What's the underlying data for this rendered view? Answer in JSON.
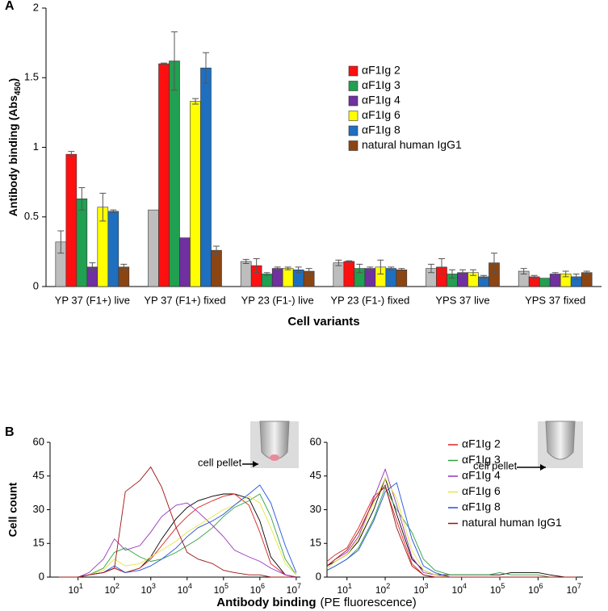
{
  "chart_data": [
    {
      "type": "bar",
      "panel_label": "A",
      "y_label": "Antibody binding (Abs",
      "y_label_sub": "450",
      "y_label_end": ")",
      "x_label": "Cell variants",
      "categories": [
        "YP 37 (F1+) live",
        "YP 37 (F1+) fixed",
        "YP 23 (F1-) live",
        "YP 23 (F1-) fixed",
        "YPS 37 live",
        "YPS 37 fixed"
      ],
      "ylim": [
        0,
        2
      ],
      "yticks": [
        0,
        0.5,
        1,
        1.5,
        2
      ],
      "grid": false,
      "series": [
        {
          "color": "#bdbdbd",
          "values": [
            0.32,
            0.55,
            0.18,
            0.17,
            0.13,
            0.11
          ],
          "errors": [
            0.08,
            null,
            0.015,
            0.02,
            0.03,
            0.02
          ]
        },
        {
          "name": "αF1Ig 2",
          "color": "#ff1010",
          "values": [
            0.95,
            1.6,
            0.15,
            0.18,
            0.14,
            0.07
          ],
          "errors": [
            0.02,
            0.005,
            0.05,
            0.005,
            0.06,
            0.01
          ]
        },
        {
          "name": "αF1Ig 3",
          "color": "#20a050",
          "values": [
            0.63,
            1.62,
            0.09,
            0.13,
            0.09,
            0.06
          ],
          "errors": [
            0.08,
            0.21,
            0.01,
            0.03,
            0.03,
            null
          ]
        },
        {
          "name": "αF1Ig 4",
          "color": "#7030a0",
          "values": [
            0.14,
            0.35,
            0.13,
            0.13,
            0.1,
            0.09
          ],
          "errors": [
            0.03,
            null,
            0.01,
            0.01,
            0.02,
            0.01
          ]
        },
        {
          "name": "αF1Ig 6",
          "color": "#ffff00",
          "values": [
            0.57,
            1.33,
            0.13,
            0.14,
            0.1,
            0.09
          ],
          "errors": [
            0.1,
            0.02,
            0.01,
            0.05,
            0.02,
            0.02
          ]
        },
        {
          "name": "αF1Ig 8",
          "color": "#1f6fc0",
          "values": [
            0.54,
            1.57,
            0.12,
            0.13,
            0.07,
            0.07
          ],
          "errors": [
            0.01,
            0.11,
            0.02,
            0.01,
            0.01,
            0.02
          ]
        },
        {
          "name": "natural human IgG1",
          "color": "#8b4513",
          "values": [
            0.14,
            0.26,
            0.11,
            0.12,
            0.17,
            0.1
          ],
          "errors": [
            0.02,
            0.03,
            0.02,
            0.01,
            0.07,
            0.01
          ]
        }
      ]
    },
    {
      "type": "line",
      "panel_label": "B",
      "log_x": true,
      "y_label": "Cell count",
      "x_label": "Antibody binding",
      "x_label_note": "(PE fluorescence)",
      "annotation": "cell pellet",
      "x": [
        3,
        5,
        10,
        20,
        50,
        100,
        200,
        500,
        1000,
        2000,
        5000,
        10000,
        20000,
        50000,
        100000,
        200000,
        500000,
        1000000,
        2000000,
        5000000,
        10000000
      ],
      "xlim": [
        1.7,
        13000000
      ],
      "xticks": [
        {
          "value": 10,
          "label": "10",
          "exponent": "1"
        },
        {
          "value": 100,
          "label": "10",
          "exponent": "2"
        },
        {
          "value": 1000,
          "label": "10",
          "exponent": "3"
        },
        {
          "value": 10000,
          "label": "10",
          "exponent": "4"
        },
        {
          "value": 100000,
          "label": "10",
          "exponent": "5"
        },
        {
          "value": 1000000,
          "label": "10",
          "exponent": "6"
        },
        {
          "value": 10000000,
          "label": "10",
          "exponent": "7"
        }
      ],
      "ylim": [
        0,
        60
      ],
      "yticks": [
        0,
        15,
        30,
        45,
        60
      ],
      "series": [
        {
          "color": "#000000",
          "values": [
            0,
            0,
            0,
            1,
            2,
            4,
            2,
            4,
            9,
            17,
            26,
            31,
            34,
            36,
            37,
            37,
            35,
            25,
            9,
            1,
            0
          ]
        },
        {
          "color": "#e02020",
          "values": [
            0,
            0,
            0,
            1,
            2,
            4,
            2,
            4,
            8,
            14,
            22,
            27,
            31,
            34,
            36,
            37,
            32,
            20,
            6,
            1,
            0
          ]
        },
        {
          "color": "#30a040",
          "values": [
            0,
            0,
            0,
            1,
            4,
            11,
            13,
            9,
            7,
            8,
            11,
            14,
            17,
            22,
            27,
            31,
            34,
            37,
            27,
            8,
            1
          ]
        },
        {
          "color": "#9933bb",
          "values": [
            0,
            0,
            0,
            2,
            8,
            17,
            12,
            14,
            20,
            27,
            32,
            33,
            29,
            23,
            18,
            12,
            9,
            7,
            4,
            1,
            0
          ]
        },
        {
          "color": "#e6e640",
          "values": [
            0,
            0,
            0,
            1,
            3,
            8,
            5,
            6,
            9,
            12,
            16,
            20,
            23,
            27,
            30,
            32,
            36,
            33,
            22,
            6,
            1
          ]
        },
        {
          "color": "#2050e0",
          "values": [
            0,
            0,
            0,
            1,
            2,
            5,
            2,
            3,
            5,
            8,
            13,
            18,
            22,
            25,
            28,
            32,
            37,
            41,
            33,
            14,
            2
          ]
        },
        {
          "color": "#a01010",
          "values": [
            0,
            0,
            0,
            1,
            2,
            4,
            38,
            43,
            49,
            40,
            22,
            11,
            8,
            6,
            3,
            2,
            1,
            1,
            0,
            0,
            0
          ]
        }
      ]
    },
    {
      "type": "line",
      "log_x": true,
      "annotation": "cell pellet",
      "x": [
        3,
        5,
        10,
        20,
        50,
        100,
        200,
        500,
        1000,
        2000,
        5000,
        10000,
        20000,
        50000,
        100000,
        200000,
        500000,
        1000000,
        2000000,
        5000000,
        10000000
      ],
      "xlim": [
        3,
        15000000
      ],
      "xticks": [
        {
          "value": 10,
          "label": "10",
          "exponent": "1"
        },
        {
          "value": 100,
          "label": "10",
          "exponent": "2"
        },
        {
          "value": 1000,
          "label": "10",
          "exponent": "3"
        },
        {
          "value": 10000,
          "label": "10",
          "exponent": "4"
        },
        {
          "value": 100000,
          "label": "10",
          "exponent": "5"
        },
        {
          "value": 1000000,
          "label": "10",
          "exponent": "6"
        },
        {
          "value": 10000000,
          "label": "10",
          "exponent": "7"
        }
      ],
      "ylim": [
        0,
        60
      ],
      "yticks": [
        0,
        15,
        30,
        45,
        60
      ],
      "series": [
        {
          "color": "#000000",
          "values": [
            5,
            7,
            10,
            16,
            30,
            44,
            28,
            8,
            3,
            1,
            1,
            1,
            1,
            1,
            1,
            2,
            2,
            2,
            1,
            0,
            0
          ]
        },
        {
          "name": "αF1Ig 2",
          "color": "#e02020",
          "values": [
            7,
            10,
            13,
            22,
            36,
            40,
            25,
            6,
            1,
            0,
            0,
            0,
            0,
            0,
            0,
            0,
            0,
            0,
            0,
            0,
            0
          ]
        },
        {
          "name": "αF1Ig 3",
          "color": "#30a040",
          "values": [
            3,
            5,
            8,
            13,
            26,
            40,
            30,
            20,
            8,
            3,
            1,
            1,
            1,
            1,
            2,
            1,
            1,
            1,
            0,
            0,
            0
          ]
        },
        {
          "name": "αF1Ig 4",
          "color": "#9933bb",
          "values": [
            5,
            8,
            11,
            18,
            35,
            48,
            32,
            9,
            2,
            1,
            0,
            0,
            0,
            0,
            0,
            0,
            0,
            0,
            0,
            0,
            0
          ]
        },
        {
          "name": "αF1Ig 6",
          "color": "#e6e640",
          "values": [
            4,
            7,
            10,
            17,
            33,
            44,
            35,
            12,
            3,
            1,
            0,
            0,
            0,
            0,
            0,
            0,
            0,
            0,
            0,
            0,
            0
          ]
        },
        {
          "name": "αF1Ig 8",
          "color": "#2050e0",
          "values": [
            3,
            5,
            8,
            12,
            25,
            38,
            42,
            17,
            5,
            2,
            0,
            0,
            0,
            0,
            0,
            0,
            0,
            0,
            0,
            0,
            0
          ]
        },
        {
          "name": "natural human IgG1",
          "color": "#a01010",
          "values": [
            5,
            8,
            12,
            20,
            34,
            41,
            22,
            5,
            1,
            0,
            0,
            0,
            0,
            0,
            0,
            0,
            0,
            0,
            0,
            0,
            0
          ]
        }
      ]
    }
  ]
}
